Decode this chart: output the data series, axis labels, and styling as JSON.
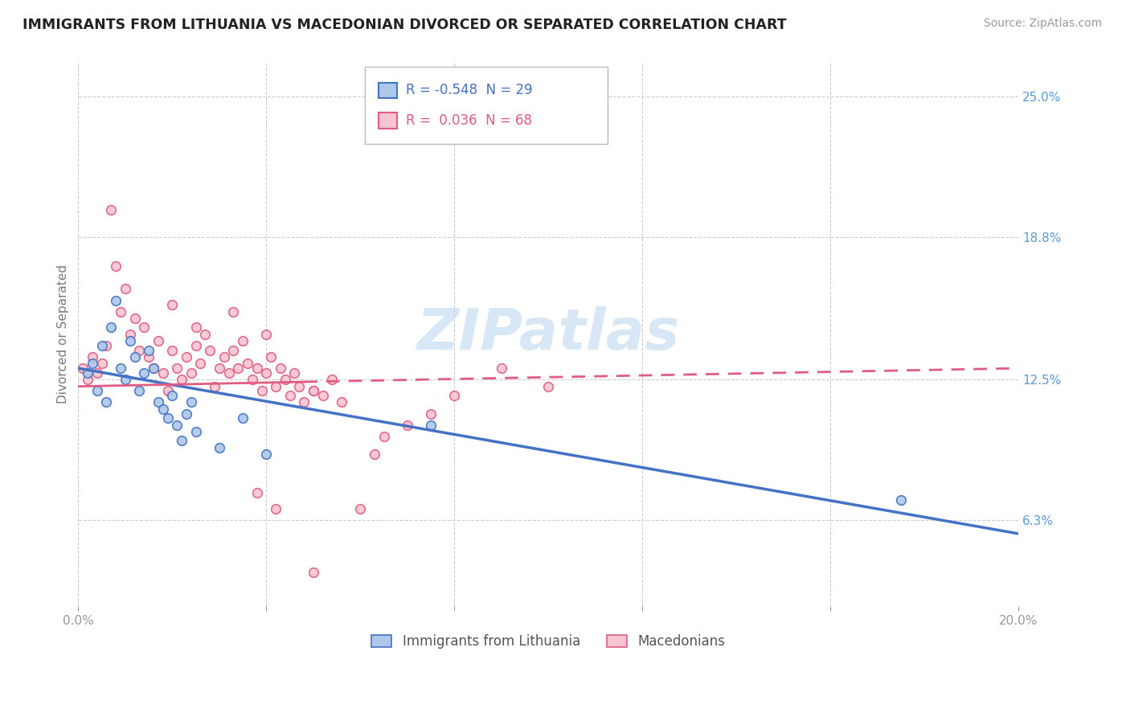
{
  "title": "IMMIGRANTS FROM LITHUANIA VS MACEDONIAN DIVORCED OR SEPARATED CORRELATION CHART",
  "source": "Source: ZipAtlas.com",
  "ylabel": "Divorced or Separated",
  "xlim": [
    0.0,
    0.2
  ],
  "ylim": [
    0.025,
    0.265
  ],
  "x_ticks": [
    0.0,
    0.04,
    0.08,
    0.12,
    0.16,
    0.2
  ],
  "x_tick_labels": [
    "0.0%",
    "",
    "",
    "",
    "",
    "20.0%"
  ],
  "y_ticks_right": [
    0.063,
    0.125,
    0.188,
    0.25
  ],
  "y_tick_labels_right": [
    "6.3%",
    "12.5%",
    "18.8%",
    "25.0%"
  ],
  "legend_entries": [
    {
      "label_r": "R = -0.548",
      "label_n": "N = 29",
      "fill_color": "#adc8e8",
      "edge_color": "#4472c4",
      "text_color": "#4472c4"
    },
    {
      "label_r": "R =  0.036",
      "label_n": "N = 68",
      "fill_color": "#f7c5d0",
      "edge_color": "#e05c80",
      "text_color": "#e05c80"
    }
  ],
  "bottom_legend": [
    {
      "label": "Immigrants from Lithuania",
      "fill_color": "#adc8e8",
      "edge_color": "#4472c4"
    },
    {
      "label": "Macedonians",
      "fill_color": "#f7c5d0",
      "edge_color": "#e05c80"
    }
  ],
  "watermark": "ZIPatlas",
  "blue_scatter_x": [
    0.002,
    0.003,
    0.004,
    0.005,
    0.006,
    0.007,
    0.008,
    0.009,
    0.01,
    0.011,
    0.012,
    0.013,
    0.014,
    0.015,
    0.016,
    0.017,
    0.018,
    0.019,
    0.02,
    0.021,
    0.022,
    0.023,
    0.024,
    0.025,
    0.03,
    0.035,
    0.04,
    0.075,
    0.175
  ],
  "blue_scatter_y": [
    0.128,
    0.132,
    0.12,
    0.14,
    0.115,
    0.148,
    0.16,
    0.13,
    0.125,
    0.142,
    0.135,
    0.12,
    0.128,
    0.138,
    0.13,
    0.115,
    0.112,
    0.108,
    0.118,
    0.105,
    0.098,
    0.11,
    0.115,
    0.102,
    0.095,
    0.108,
    0.092,
    0.105,
    0.072
  ],
  "pink_scatter_x": [
    0.001,
    0.002,
    0.003,
    0.004,
    0.005,
    0.006,
    0.007,
    0.008,
    0.009,
    0.01,
    0.011,
    0.012,
    0.013,
    0.014,
    0.015,
    0.016,
    0.017,
    0.018,
    0.019,
    0.02,
    0.021,
    0.022,
    0.023,
    0.024,
    0.025,
    0.026,
    0.027,
    0.028,
    0.029,
    0.03,
    0.031,
    0.032,
    0.033,
    0.034,
    0.035,
    0.036,
    0.037,
    0.038,
    0.039,
    0.04,
    0.041,
    0.042,
    0.043,
    0.044,
    0.045,
    0.046,
    0.047,
    0.048,
    0.05,
    0.052,
    0.054,
    0.056,
    0.06,
    0.063,
    0.065,
    0.07,
    0.075,
    0.08,
    0.09,
    0.1,
    0.038,
    0.042,
    0.05,
    0.02,
    0.025,
    0.033,
    0.04,
    0.05
  ],
  "pink_scatter_y": [
    0.13,
    0.125,
    0.135,
    0.128,
    0.132,
    0.14,
    0.2,
    0.175,
    0.155,
    0.165,
    0.145,
    0.152,
    0.138,
    0.148,
    0.135,
    0.13,
    0.142,
    0.128,
    0.12,
    0.138,
    0.13,
    0.125,
    0.135,
    0.128,
    0.14,
    0.132,
    0.145,
    0.138,
    0.122,
    0.13,
    0.135,
    0.128,
    0.138,
    0.13,
    0.142,
    0.132,
    0.125,
    0.13,
    0.12,
    0.128,
    0.135,
    0.122,
    0.13,
    0.125,
    0.118,
    0.128,
    0.122,
    0.115,
    0.12,
    0.118,
    0.125,
    0.115,
    0.068,
    0.092,
    0.1,
    0.105,
    0.11,
    0.118,
    0.13,
    0.122,
    0.075,
    0.068,
    0.04,
    0.158,
    0.148,
    0.155,
    0.145,
    0.12
  ],
  "blue_line": {
    "x0": 0.0,
    "x1": 0.2,
    "y0": 0.13,
    "y1": 0.057
  },
  "pink_solid_line": {
    "x0": 0.0,
    "x1": 0.048,
    "y0": 0.122,
    "y1": 0.124
  },
  "pink_dashed_line": {
    "x0": 0.048,
    "x1": 0.2,
    "y0": 0.124,
    "y1": 0.13
  },
  "grid_color": "#cccccc",
  "bg_color": "#ffffff",
  "scatter_size": 70,
  "title_color": "#222222",
  "axis_color": "#999999",
  "right_label_color": "#5b9bd5"
}
